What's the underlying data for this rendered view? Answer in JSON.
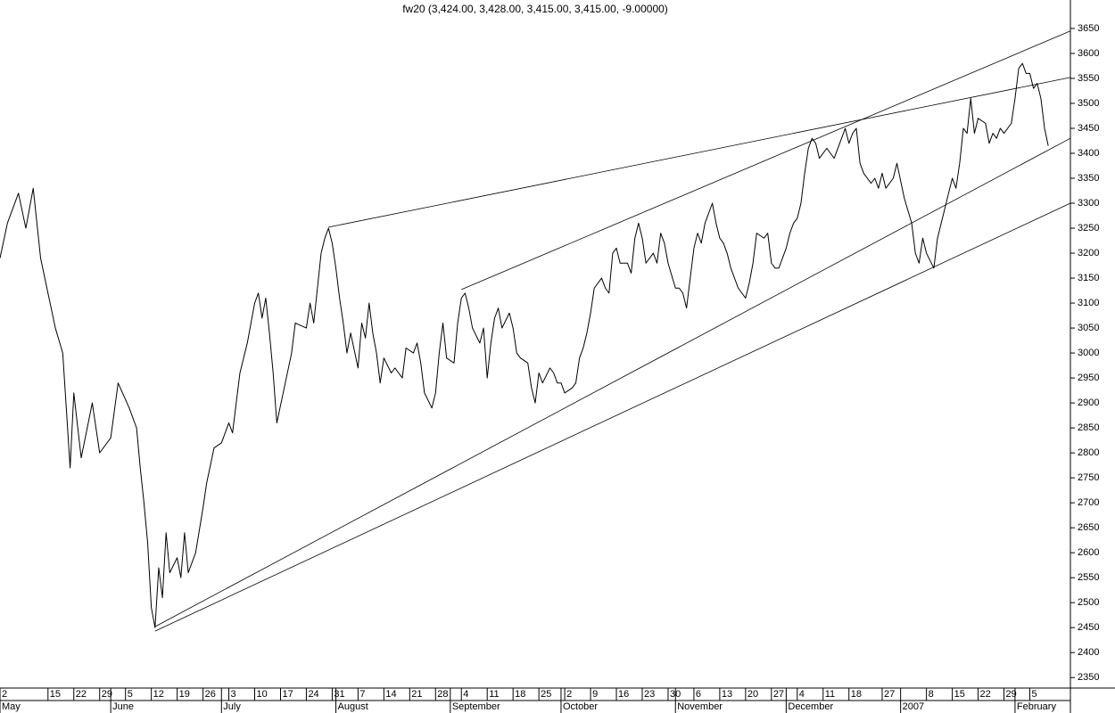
{
  "chart_data": {
    "type": "line",
    "title": "fw20 (3,424.00, 3,428.00, 3,415.00, 3,415.00, -9.00000)",
    "color": "#000000",
    "x": [
      "05-02",
      "05-04",
      "05-07",
      "05-09",
      "05-11",
      "05-13",
      "05-15",
      "05-17",
      "05-19",
      "05-21",
      "05-22",
      "05-24",
      "05-27",
      "05-29",
      "06-01",
      "06-03",
      "06-06",
      "06-08",
      "06-09",
      "06-10",
      "06-11",
      "06-12",
      "06-13",
      "06-14",
      "06-15",
      "06-16",
      "06-17",
      "06-19",
      "06-20",
      "06-21",
      "06-22",
      "06-24",
      "06-26",
      "06-27",
      "06-29",
      "07-01",
      "07-03",
      "07-04",
      "07-06",
      "07-08",
      "07-10",
      "07-11",
      "07-12",
      "07-13",
      "07-14",
      "07-15",
      "07-16",
      "07-18",
      "07-20",
      "07-21",
      "07-24",
      "07-25",
      "07-26",
      "07-27",
      "07-28",
      "07-29",
      "07-30",
      "07-31",
      "08-01",
      "08-02",
      "08-03",
      "08-04",
      "08-05",
      "08-07",
      "08-08",
      "08-09",
      "08-10",
      "08-11",
      "08-12",
      "08-13",
      "08-14",
      "08-16",
      "08-17",
      "08-19",
      "08-20",
      "08-22",
      "08-23",
      "08-24",
      "08-25",
      "08-27",
      "08-28",
      "08-29",
      "08-30",
      "08-31",
      "09-02",
      "09-03",
      "09-04",
      "09-05",
      "09-06",
      "09-07",
      "09-09",
      "09-10",
      "09-11",
      "09-12",
      "09-13",
      "09-14",
      "09-15",
      "09-17",
      "09-18",
      "09-19",
      "09-20",
      "09-22",
      "09-23",
      "09-24",
      "09-25",
      "09-26",
      "09-28",
      "09-29",
      "09-30",
      "10-01",
      "10-02",
      "10-04",
      "10-05",
      "10-06",
      "10-07",
      "10-08",
      "10-09",
      "10-10",
      "10-12",
      "10-13",
      "10-14",
      "10-15",
      "10-16",
      "10-17",
      "10-19",
      "10-20",
      "10-21",
      "10-22",
      "10-23",
      "10-24",
      "10-26",
      "10-27",
      "10-28",
      "10-29",
      "10-30",
      "11-01",
      "11-02",
      "11-03",
      "11-04",
      "11-05",
      "11-06",
      "11-07",
      "11-08",
      "11-09",
      "11-11",
      "11-12",
      "11-13",
      "11-14",
      "11-15",
      "11-16",
      "11-18",
      "11-19",
      "11-20",
      "11-21",
      "11-22",
      "11-23",
      "11-25",
      "11-26",
      "11-27",
      "11-28",
      "11-29",
      "12-01",
      "12-02",
      "12-03",
      "12-04",
      "12-05",
      "12-06",
      "12-07",
      "12-08",
      "12-09",
      "12-10",
      "12-12",
      "12-13",
      "12-14",
      "12-16",
      "12-17",
      "12-18",
      "12-19",
      "12-20",
      "12-21",
      "12-22",
      "12-24",
      "12-25",
      "12-26",
      "12-27",
      "12-28",
      "12-30",
      "12-31",
      "01-02",
      "01-04",
      "01-05",
      "01-06",
      "01-07",
      "01-08",
      "01-10",
      "01-11",
      "01-12",
      "01-13",
      "01-14",
      "01-15",
      "01-16",
      "01-17",
      "01-18",
      "01-19",
      "01-20",
      "01-21",
      "01-22",
      "01-24",
      "01-25",
      "01-26",
      "01-27",
      "01-28",
      "01-29",
      "01-31",
      "02-01",
      "02-02",
      "02-03",
      "02-04",
      "02-05",
      "02-06",
      "02-07",
      "02-08",
      "02-09",
      "02-10"
    ],
    "values": [
      3190,
      3260,
      3320,
      3250,
      3330,
      3190,
      3120,
      3050,
      3000,
      2770,
      2920,
      2790,
      2900,
      2800,
      2830,
      2940,
      2890,
      2850,
      2770,
      2700,
      2620,
      2490,
      2450,
      2570,
      2510,
      2640,
      2560,
      2590,
      2550,
      2640,
      2560,
      2600,
      2690,
      2740,
      2810,
      2820,
      2860,
      2840,
      2960,
      3020,
      3100,
      3120,
      3070,
      3110,
      3040,
      2960,
      2860,
      2930,
      3000,
      3060,
      3050,
      3100,
      3060,
      3130,
      3200,
      3230,
      3250,
      3220,
      3170,
      3110,
      3060,
      3000,
      3040,
      2970,
      3060,
      3030,
      3100,
      3040,
      3000,
      2940,
      2990,
      2960,
      2970,
      2950,
      3010,
      3000,
      3020,
      2980,
      2920,
      2890,
      2920,
      3000,
      3060,
      2990,
      2980,
      3060,
      3110,
      3120,
      3090,
      3050,
      3020,
      3050,
      2950,
      3020,
      3070,
      3090,
      3050,
      3080,
      3050,
      3000,
      2990,
      2980,
      2930,
      2900,
      2960,
      2940,
      2970,
      2960,
      2940,
      2940,
      2920,
      2930,
      2940,
      2990,
      3010,
      3040,
      3080,
      3130,
      3150,
      3130,
      3120,
      3200,
      3210,
      3180,
      3180,
      3160,
      3230,
      3260,
      3230,
      3180,
      3200,
      3180,
      3240,
      3220,
      3180,
      3130,
      3130,
      3120,
      3090,
      3150,
      3210,
      3240,
      3220,
      3260,
      3300,
      3260,
      3230,
      3220,
      3200,
      3170,
      3130,
      3120,
      3110,
      3140,
      3180,
      3240,
      3230,
      3240,
      3180,
      3170,
      3170,
      3210,
      3240,
      3260,
      3270,
      3300,
      3360,
      3410,
      3430,
      3420,
      3390,
      3410,
      3400,
      3390,
      3430,
      3450,
      3420,
      3440,
      3450,
      3380,
      3360,
      3340,
      3350,
      3330,
      3360,
      3330,
      3350,
      3380,
      3310,
      3260,
      3200,
      3180,
      3230,
      3200,
      3170,
      3230,
      3260,
      3290,
      3320,
      3350,
      3330,
      3380,
      3450,
      3440,
      3510,
      3440,
      3470,
      3460,
      3420,
      3440,
      3430,
      3450,
      3440,
      3460,
      3510,
      3570,
      3580,
      3560,
      3560,
      3530,
      3540,
      3510,
      3450,
      3415
    ],
    "trendlines": [
      {
        "x": [
          "06-13",
          "02-16"
        ],
        "values": [
          2443,
          3300
        ]
      },
      {
        "x": [
          "06-13",
          "02-16"
        ],
        "values": [
          2452,
          3430
        ]
      },
      {
        "x": [
          "07-30",
          "02-16"
        ],
        "values": [
          3252,
          3552
        ]
      },
      {
        "x": [
          "09-04",
          "02-16"
        ],
        "values": [
          3127,
          3645
        ]
      }
    ],
    "xlim": [
      "05-02",
      "02-16"
    ],
    "xticks": [
      {
        "value": "05-02",
        "label": "2"
      },
      {
        "value": "05-15",
        "label": "15"
      },
      {
        "value": "05-22",
        "label": "22"
      },
      {
        "value": "05-29",
        "label": "29"
      },
      {
        "value": "06-05",
        "label": "5"
      },
      {
        "value": "06-12",
        "label": "12"
      },
      {
        "value": "06-19",
        "label": "19"
      },
      {
        "value": "06-26",
        "label": "26"
      },
      {
        "value": "07-03",
        "label": "3"
      },
      {
        "value": "07-10",
        "label": "10"
      },
      {
        "value": "07-17",
        "label": "17"
      },
      {
        "value": "07-24",
        "label": "24"
      },
      {
        "value": "07-31",
        "label": "31"
      },
      {
        "value": "08-07",
        "label": "7"
      },
      {
        "value": "08-14",
        "label": "14"
      },
      {
        "value": "08-21",
        "label": "21"
      },
      {
        "value": "08-28",
        "label": "28"
      },
      {
        "value": "09-04",
        "label": "4"
      },
      {
        "value": "09-11",
        "label": "11"
      },
      {
        "value": "09-18",
        "label": "18"
      },
      {
        "value": "09-25",
        "label": "25"
      },
      {
        "value": "10-02",
        "label": "2"
      },
      {
        "value": "10-09",
        "label": "9"
      },
      {
        "value": "10-16",
        "label": "16"
      },
      {
        "value": "10-23",
        "label": "23"
      },
      {
        "value": "10-30",
        "label": "30"
      },
      {
        "value": "11-06",
        "label": "6"
      },
      {
        "value": "11-13",
        "label": "13"
      },
      {
        "value": "11-20",
        "label": "20"
      },
      {
        "value": "11-27",
        "label": "27"
      },
      {
        "value": "12-04",
        "label": "4"
      },
      {
        "value": "12-11",
        "label": "11"
      },
      {
        "value": "12-18",
        "label": "18"
      },
      {
        "value": "12-27",
        "label": "27"
      },
      {
        "value": "01-08",
        "label": "8"
      },
      {
        "value": "01-15",
        "label": "15"
      },
      {
        "value": "01-22",
        "label": "22"
      },
      {
        "value": "01-29",
        "label": "29"
      },
      {
        "value": "02-05",
        "label": "5"
      }
    ],
    "xmonths": [
      {
        "value": "05-02",
        "label": "May"
      },
      {
        "value": "06-01",
        "label": "June"
      },
      {
        "value": "07-01",
        "label": "July"
      },
      {
        "value": "08-01",
        "label": "August"
      },
      {
        "value": "09-01",
        "label": "September"
      },
      {
        "value": "10-01",
        "label": "October"
      },
      {
        "value": "11-01",
        "label": "November"
      },
      {
        "value": "12-01",
        "label": "December"
      },
      {
        "value": "01-01",
        "label": "2007"
      },
      {
        "value": "02-01",
        "label": "February"
      }
    ],
    "ylim": [
      2329,
      3707
    ],
    "yticks": [
      2350,
      2400,
      2450,
      2500,
      2550,
      2600,
      2650,
      2700,
      2750,
      2800,
      2850,
      2900,
      2950,
      3000,
      3050,
      3100,
      3150,
      3200,
      3250,
      3300,
      3350,
      3400,
      3450,
      3500,
      3550,
      3600,
      3650
    ]
  }
}
